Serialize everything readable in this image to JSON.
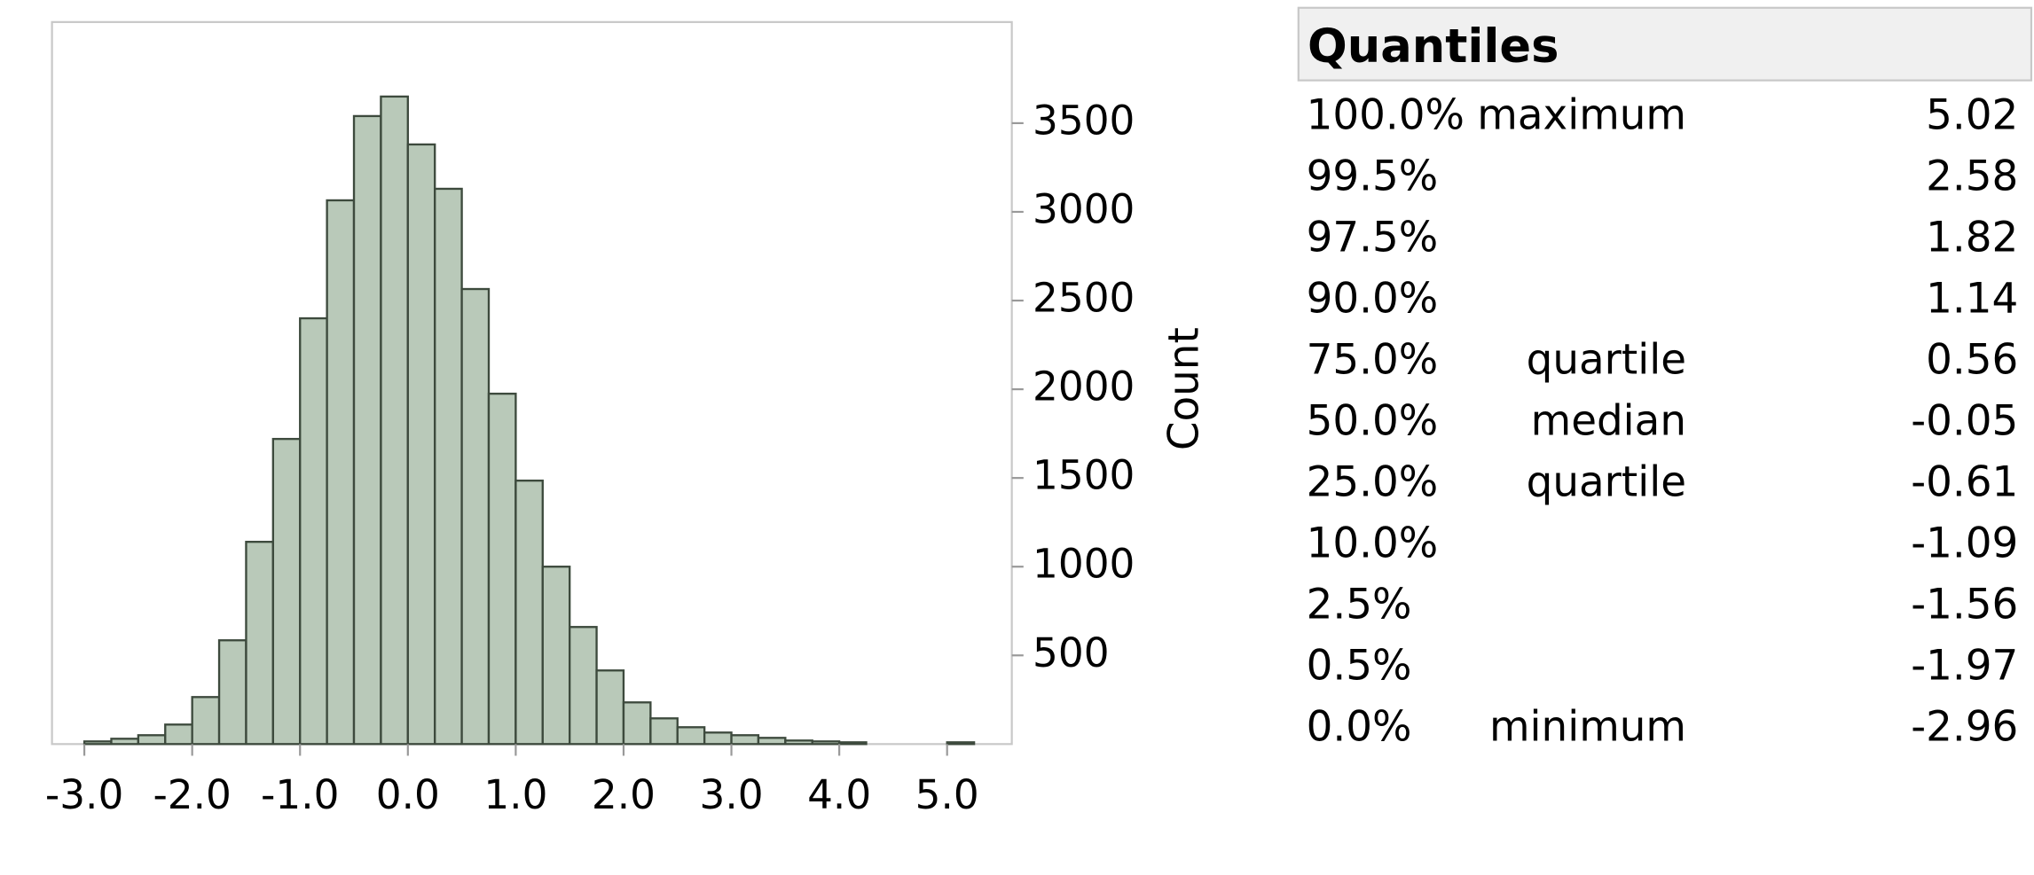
{
  "chart_data": {
    "type": "histogram",
    "bins": [
      -3.0,
      -2.75,
      -2.5,
      -2.25,
      -2.0,
      -1.75,
      -1.5,
      -1.25,
      -1.0,
      -0.75,
      -0.5,
      -0.25,
      0.0,
      0.25,
      0.5,
      0.75,
      1.0,
      1.25,
      1.5,
      1.75,
      2.0,
      2.25,
      2.5,
      2.75,
      3.0,
      3.25,
      3.5,
      3.75,
      4.0,
      4.25,
      4.5,
      4.75,
      5.0,
      5.25
    ],
    "values": [
      15,
      30,
      50,
      110,
      265,
      585,
      1140,
      1720,
      2400,
      3065,
      3540,
      3650,
      3380,
      3130,
      2565,
      1975,
      1485,
      1000,
      660,
      415,
      235,
      145,
      95,
      65,
      50,
      35,
      20,
      15,
      10,
      0,
      0,
      0,
      10
    ],
    "color": "#b9c9b9",
    "y_label": "Count",
    "xlim": [
      -3.3,
      5.6
    ],
    "ylim": [
      0,
      4070
    ],
    "xticks": [
      {
        "value": -3,
        "label": "-3.0"
      },
      {
        "value": -2,
        "label": "-2.0"
      },
      {
        "value": -1,
        "label": "-1.0"
      },
      {
        "value": 0,
        "label": "0.0"
      },
      {
        "value": 1,
        "label": "1.0"
      },
      {
        "value": 2,
        "label": "2.0"
      },
      {
        "value": 3,
        "label": "3.0"
      },
      {
        "value": 4,
        "label": "4.0"
      },
      {
        "value": 5,
        "label": "5.0"
      }
    ],
    "yticks": [
      500,
      1000,
      1500,
      2000,
      2500,
      3000,
      3500
    ]
  },
  "quantiles": {
    "title": "Quantiles",
    "rows": [
      [
        "100.0%",
        "maximum",
        5.02
      ],
      [
        "99.5%",
        "",
        2.58
      ],
      [
        "97.5%",
        "",
        1.82
      ],
      [
        "90.0%",
        "",
        1.14
      ],
      [
        "75.0%",
        "quartile",
        0.56
      ],
      [
        "50.0%",
        "median",
        -0.05
      ],
      [
        "25.0%",
        "quartile",
        -0.61
      ],
      [
        "10.0%",
        "",
        -1.09
      ],
      [
        "2.5%",
        "",
        -1.56
      ],
      [
        "0.5%",
        "",
        -1.97
      ],
      [
        "0.0%",
        "minimum",
        -2.96
      ]
    ]
  }
}
